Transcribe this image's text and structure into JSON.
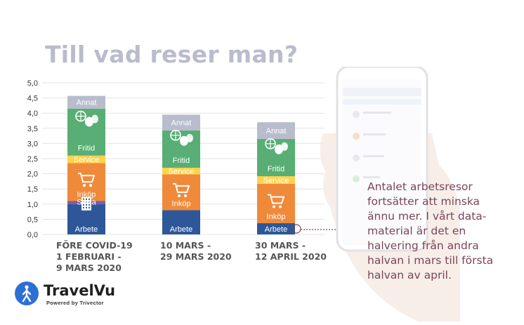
{
  "title": "Till vad reser man?",
  "chart_data": {
    "type": "bar",
    "stacked": true,
    "y_ticks": [
      "5,0",
      "4,5",
      "4,0",
      "3,5",
      "3,0",
      "2,5",
      "2,0",
      "1,5",
      "1,0",
      "0,5",
      "0,0"
    ],
    "ylim": [
      0,
      5.0
    ],
    "grid": true,
    "categories": [
      [
        "FÖRE COVID-19",
        "1 FEBRUARI -",
        "9 MARS 2020"
      ],
      [
        "10 MARS -",
        "29 MARS 2020"
      ],
      [
        "30 MARS -",
        "12 APRIL 2020"
      ]
    ],
    "series": [
      {
        "name": "Arbete",
        "color": "#2d5799",
        "values": [
          1.0,
          0.8,
          0.37
        ]
      },
      {
        "name": "Skola",
        "color": "#7e5aa3",
        "values": [
          0.1,
          0.0,
          0.0
        ]
      },
      {
        "name": "Inköp",
        "color": "#ef8a3b",
        "values": [
          1.25,
          1.18,
          1.3
        ]
      },
      {
        "name": "Service",
        "color": "#ffd24c",
        "values": [
          0.25,
          0.22,
          0.25
        ]
      },
      {
        "name": "Fritid",
        "color": "#58ae74",
        "values": [
          1.55,
          1.23,
          1.23
        ]
      },
      {
        "name": "Annat",
        "color": "#b9bccd",
        "values": [
          0.42,
          0.52,
          0.55
        ]
      }
    ]
  },
  "annotation": "Antalet arbetsresor fortsätter att minska ännu mer. I vårt data-material är det en halvering från andra halvan i mars till första halvan av april.",
  "logo": {
    "name": "TravelVu",
    "tagline": "Powered by Trivector",
    "brand_color": "#2c6fd6"
  }
}
